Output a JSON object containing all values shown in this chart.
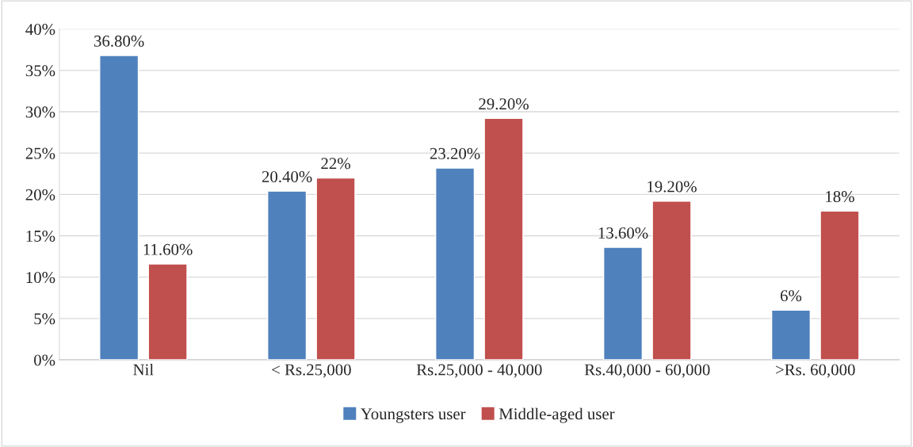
{
  "chart_data": {
    "type": "bar",
    "categories": [
      "Nil",
      "< Rs.25,000",
      "Rs.25,000 - 40,000",
      "Rs.40,000 - 60,000",
      ">Rs. 60,000"
    ],
    "series": [
      {
        "name": "Youngsters user",
        "color": "#4f81bd",
        "values": [
          36.8,
          20.4,
          23.2,
          13.6,
          6
        ],
        "value_labels": [
          "36.80%",
          "20.40%",
          "23.20%",
          "13.60%",
          "6%"
        ]
      },
      {
        "name": "Middle-aged user",
        "color": "#c0504d",
        "values": [
          11.6,
          22,
          29.2,
          19.2,
          18
        ],
        "value_labels": [
          "11.60%",
          "22%",
          "29.20%",
          "19.20%",
          "18%"
        ]
      }
    ],
    "ylim": [
      0,
      40
    ],
    "yticks": [
      {
        "value": 0,
        "label": "0%"
      },
      {
        "value": 5,
        "label": "5%"
      },
      {
        "value": 10,
        "label": "10%"
      },
      {
        "value": 15,
        "label": "15%"
      },
      {
        "value": 20,
        "label": "20%"
      },
      {
        "value": 25,
        "label": "25%"
      },
      {
        "value": 30,
        "label": "30%"
      },
      {
        "value": 35,
        "label": "35%"
      },
      {
        "value": 40,
        "label": "40%"
      }
    ],
    "grid": "y",
    "legend": "bottom"
  }
}
